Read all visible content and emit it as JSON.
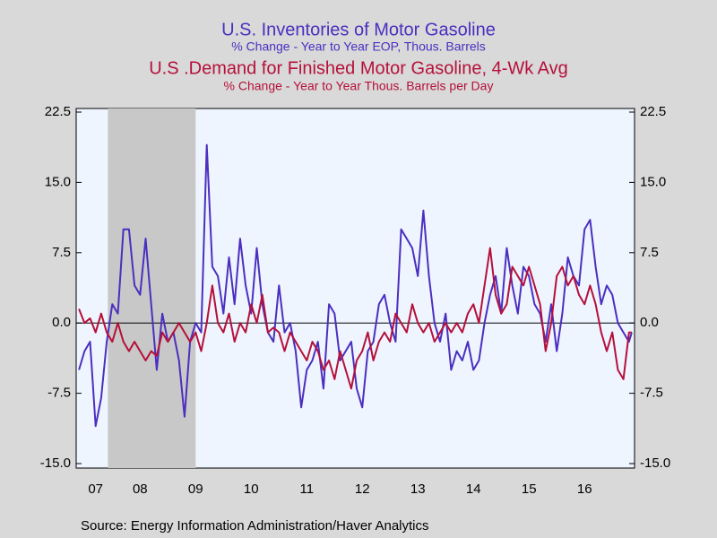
{
  "chart_data": {
    "type": "line",
    "titles": [
      {
        "text": "U.S. Inventories of Motor Gasoline",
        "color": "#4b2fbf"
      },
      {
        "text": "% Change - Year to Year    EOP, Thous. Barrels",
        "color": "#4b2fbf"
      },
      {
        "text": "U.S .Demand for Finished Motor Gasoline, 4-Wk Avg",
        "color": "#b5103a"
      },
      {
        "text": "% Change - Year to Year    Thous. Barrels per Day",
        "color": "#b5103a"
      }
    ],
    "source": "Source:  Energy Information Administration/Haver Analytics",
    "x": [
      2007.4,
      2007.5,
      2007.6,
      2007.7,
      2007.8,
      2007.9,
      2008.0,
      2008.1,
      2008.2,
      2008.3,
      2008.4,
      2008.5,
      2008.6,
      2008.7,
      2008.8,
      2008.9,
      2009.0,
      2009.1,
      2009.2,
      2009.3,
      2009.4,
      2009.5,
      2009.6,
      2009.7,
      2009.8,
      2009.9,
      2010.0,
      2010.1,
      2010.2,
      2010.3,
      2010.4,
      2010.5,
      2010.6,
      2010.7,
      2010.8,
      2010.9,
      2011.0,
      2011.1,
      2011.2,
      2011.3,
      2011.4,
      2011.5,
      2011.6,
      2011.7,
      2011.8,
      2011.9,
      2012.0,
      2012.1,
      2012.2,
      2012.3,
      2012.4,
      2012.5,
      2012.6,
      2012.7,
      2012.8,
      2012.9,
      2013.0,
      2013.1,
      2013.2,
      2013.3,
      2013.4,
      2013.5,
      2013.6,
      2013.7,
      2013.8,
      2013.9,
      2014.0,
      2014.1,
      2014.2,
      2014.3,
      2014.4,
      2014.5,
      2014.6,
      2014.7,
      2014.8,
      2014.9,
      2015.0,
      2015.1,
      2015.2,
      2015.3,
      2015.4,
      2015.5,
      2015.6,
      2015.7,
      2015.8,
      2015.9,
      2016.0,
      2016.1,
      2016.2,
      2016.3,
      2016.4,
      2016.5,
      2016.6,
      2016.7,
      2016.8,
      2016.9,
      2017.0,
      2017.1,
      2017.2,
      2017.3,
      2017.35
    ],
    "series": [
      {
        "name": "U.S. Inventories of Motor Gasoline",
        "color": "#4b2fbf",
        "axis": "y",
        "values": [
          -5,
          -3,
          -2,
          -11,
          -8,
          -2,
          2,
          1,
          10,
          10,
          4,
          3,
          9,
          2,
          -5,
          1,
          -2,
          -1,
          -4,
          -10,
          -2,
          0,
          -1,
          19,
          6,
          5,
          1,
          7,
          2,
          9,
          4,
          1,
          8,
          2,
          -1,
          -2,
          4,
          -1,
          0,
          -3,
          -9,
          -5,
          -4,
          -2,
          -7,
          2,
          1,
          -4,
          -3,
          -2,
          -7,
          -9,
          -3,
          -2,
          2,
          3,
          0,
          -2,
          10,
          9,
          8,
          5,
          12,
          5,
          0,
          -2,
          1,
          -5,
          -3,
          -4,
          -2,
          -5,
          -4,
          0,
          3,
          5,
          1,
          8,
          4,
          1,
          6,
          5,
          2,
          1,
          -2,
          2,
          -3,
          1,
          7,
          5,
          4,
          10,
          11,
          6,
          2,
          4,
          3,
          0,
          -1,
          -2,
          -1
        ]
      },
      {
        "name": "U.S .Demand for Finished Motor Gasoline, 4-Wk Avg",
        "color": "#b5103a",
        "axis": "y2",
        "values": [
          1.5,
          0,
          0.5,
          -1,
          1,
          -1,
          -2,
          0,
          -2,
          -3,
          -2,
          -3,
          -4,
          -3,
          -3.5,
          -1,
          -2,
          -1,
          0,
          -1,
          -2,
          -1,
          -3,
          0,
          4,
          0,
          -1,
          1,
          -2,
          0,
          -1,
          2,
          0,
          3,
          -1,
          -0.5,
          -1,
          -3,
          -1,
          -2,
          -3,
          -4,
          -2,
          -3,
          -5,
          -4,
          -6,
          -3,
          -5,
          -7,
          -4,
          -3,
          -1,
          -4,
          -2,
          -1,
          -2,
          1,
          0,
          -1,
          2,
          0,
          -1,
          0,
          -2,
          -1,
          0,
          -1,
          0,
          -1,
          1,
          2,
          0,
          4,
          8,
          3,
          1,
          2,
          6,
          5,
          4,
          6,
          4,
          2,
          -3,
          0,
          5,
          6,
          4,
          5,
          3,
          2,
          4,
          2,
          -1,
          -3,
          -1,
          -5,
          -6,
          -1,
          -1
        ]
      }
    ],
    "shaded_regions": [
      [
        2007.92,
        2009.5
      ]
    ],
    "xlim": [
      2007.35,
      2017.4
    ],
    "xticks": [
      {
        "value": 2007.7,
        "label": "07"
      },
      {
        "value": 2008.5,
        "label": "08"
      },
      {
        "value": 2009.5,
        "label": "09"
      },
      {
        "value": 2010.5,
        "label": "10"
      },
      {
        "value": 2011.5,
        "label": "11"
      },
      {
        "value": 2012.5,
        "label": "12"
      },
      {
        "value": 2013.5,
        "label": "13"
      },
      {
        "value": 2014.5,
        "label": "14"
      },
      {
        "value": 2015.5,
        "label": "15"
      },
      {
        "value": 2016.5,
        "label": "16"
      }
    ],
    "ylim": [
      -15,
      22.5
    ],
    "yticks": [
      {
        "value": -15,
        "label": "-15.0"
      },
      {
        "value": -7.5,
        "label": "-7.5"
      },
      {
        "value": 0,
        "label": "0.0"
      },
      7.5,
      {
        "value": 15,
        "label": "15.0"
      },
      22.5
    ],
    "y2lim": [
      -15,
      22.5
    ],
    "y2ticks": [
      {
        "value": -15,
        "label": "-15.0"
      },
      {
        "value": -7.5,
        "label": "-7.5"
      },
      {
        "value": 0,
        "label": "0.0"
      },
      7.5,
      {
        "value": 15,
        "label": "15.0"
      },
      22.5
    ]
  }
}
